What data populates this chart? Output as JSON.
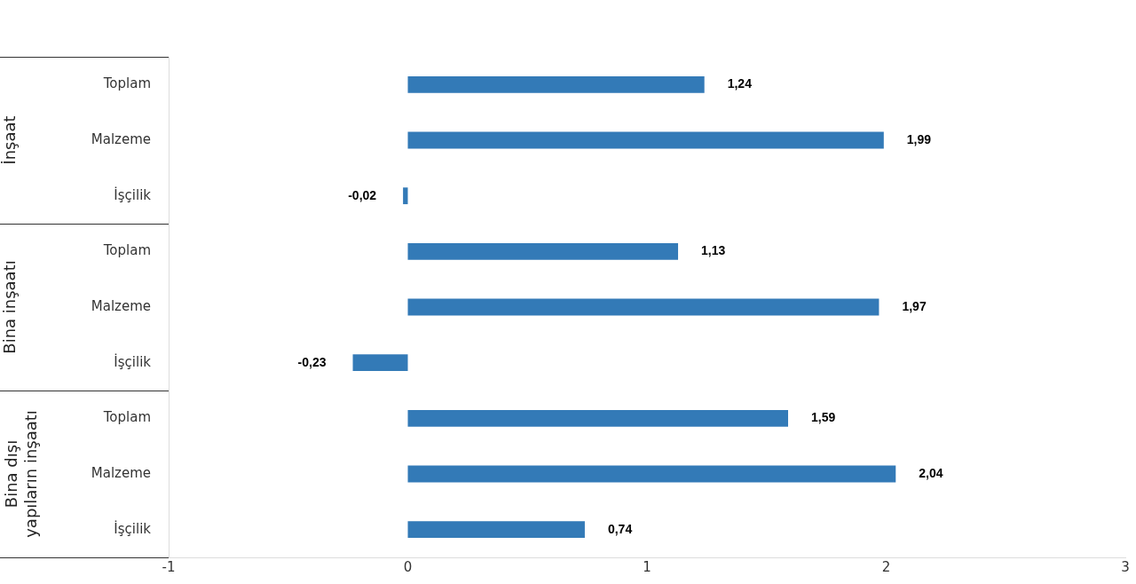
{
  "chart_data": {
    "type": "bar",
    "orientation": "horizontal",
    "categories": [
      "Toplam",
      "Malzeme",
      "İşçilik",
      "Toplam",
      "Malzeme",
      "İşçilik",
      "Toplam",
      "Malzeme",
      "İşçilik"
    ],
    "values": [
      1.24,
      1.99,
      -0.02,
      1.13,
      1.97,
      -0.23,
      1.59,
      2.04,
      0.74
    ],
    "value_labels": [
      "1,24",
      "1,99",
      "-0,02",
      "1,13",
      "1,97",
      "-0,23",
      "1,59",
      "2,04",
      "0,74"
    ],
    "color": "#337ab7",
    "xlim": [
      -1,
      3
    ],
    "xticks": [
      -1,
      0,
      1,
      2,
      3
    ],
    "grid": false,
    "legend": false,
    "annotations": [
      "İnşaat",
      "Bina inşaatı",
      "Bina dışı\nyapıların inşaatı"
    ]
  }
}
